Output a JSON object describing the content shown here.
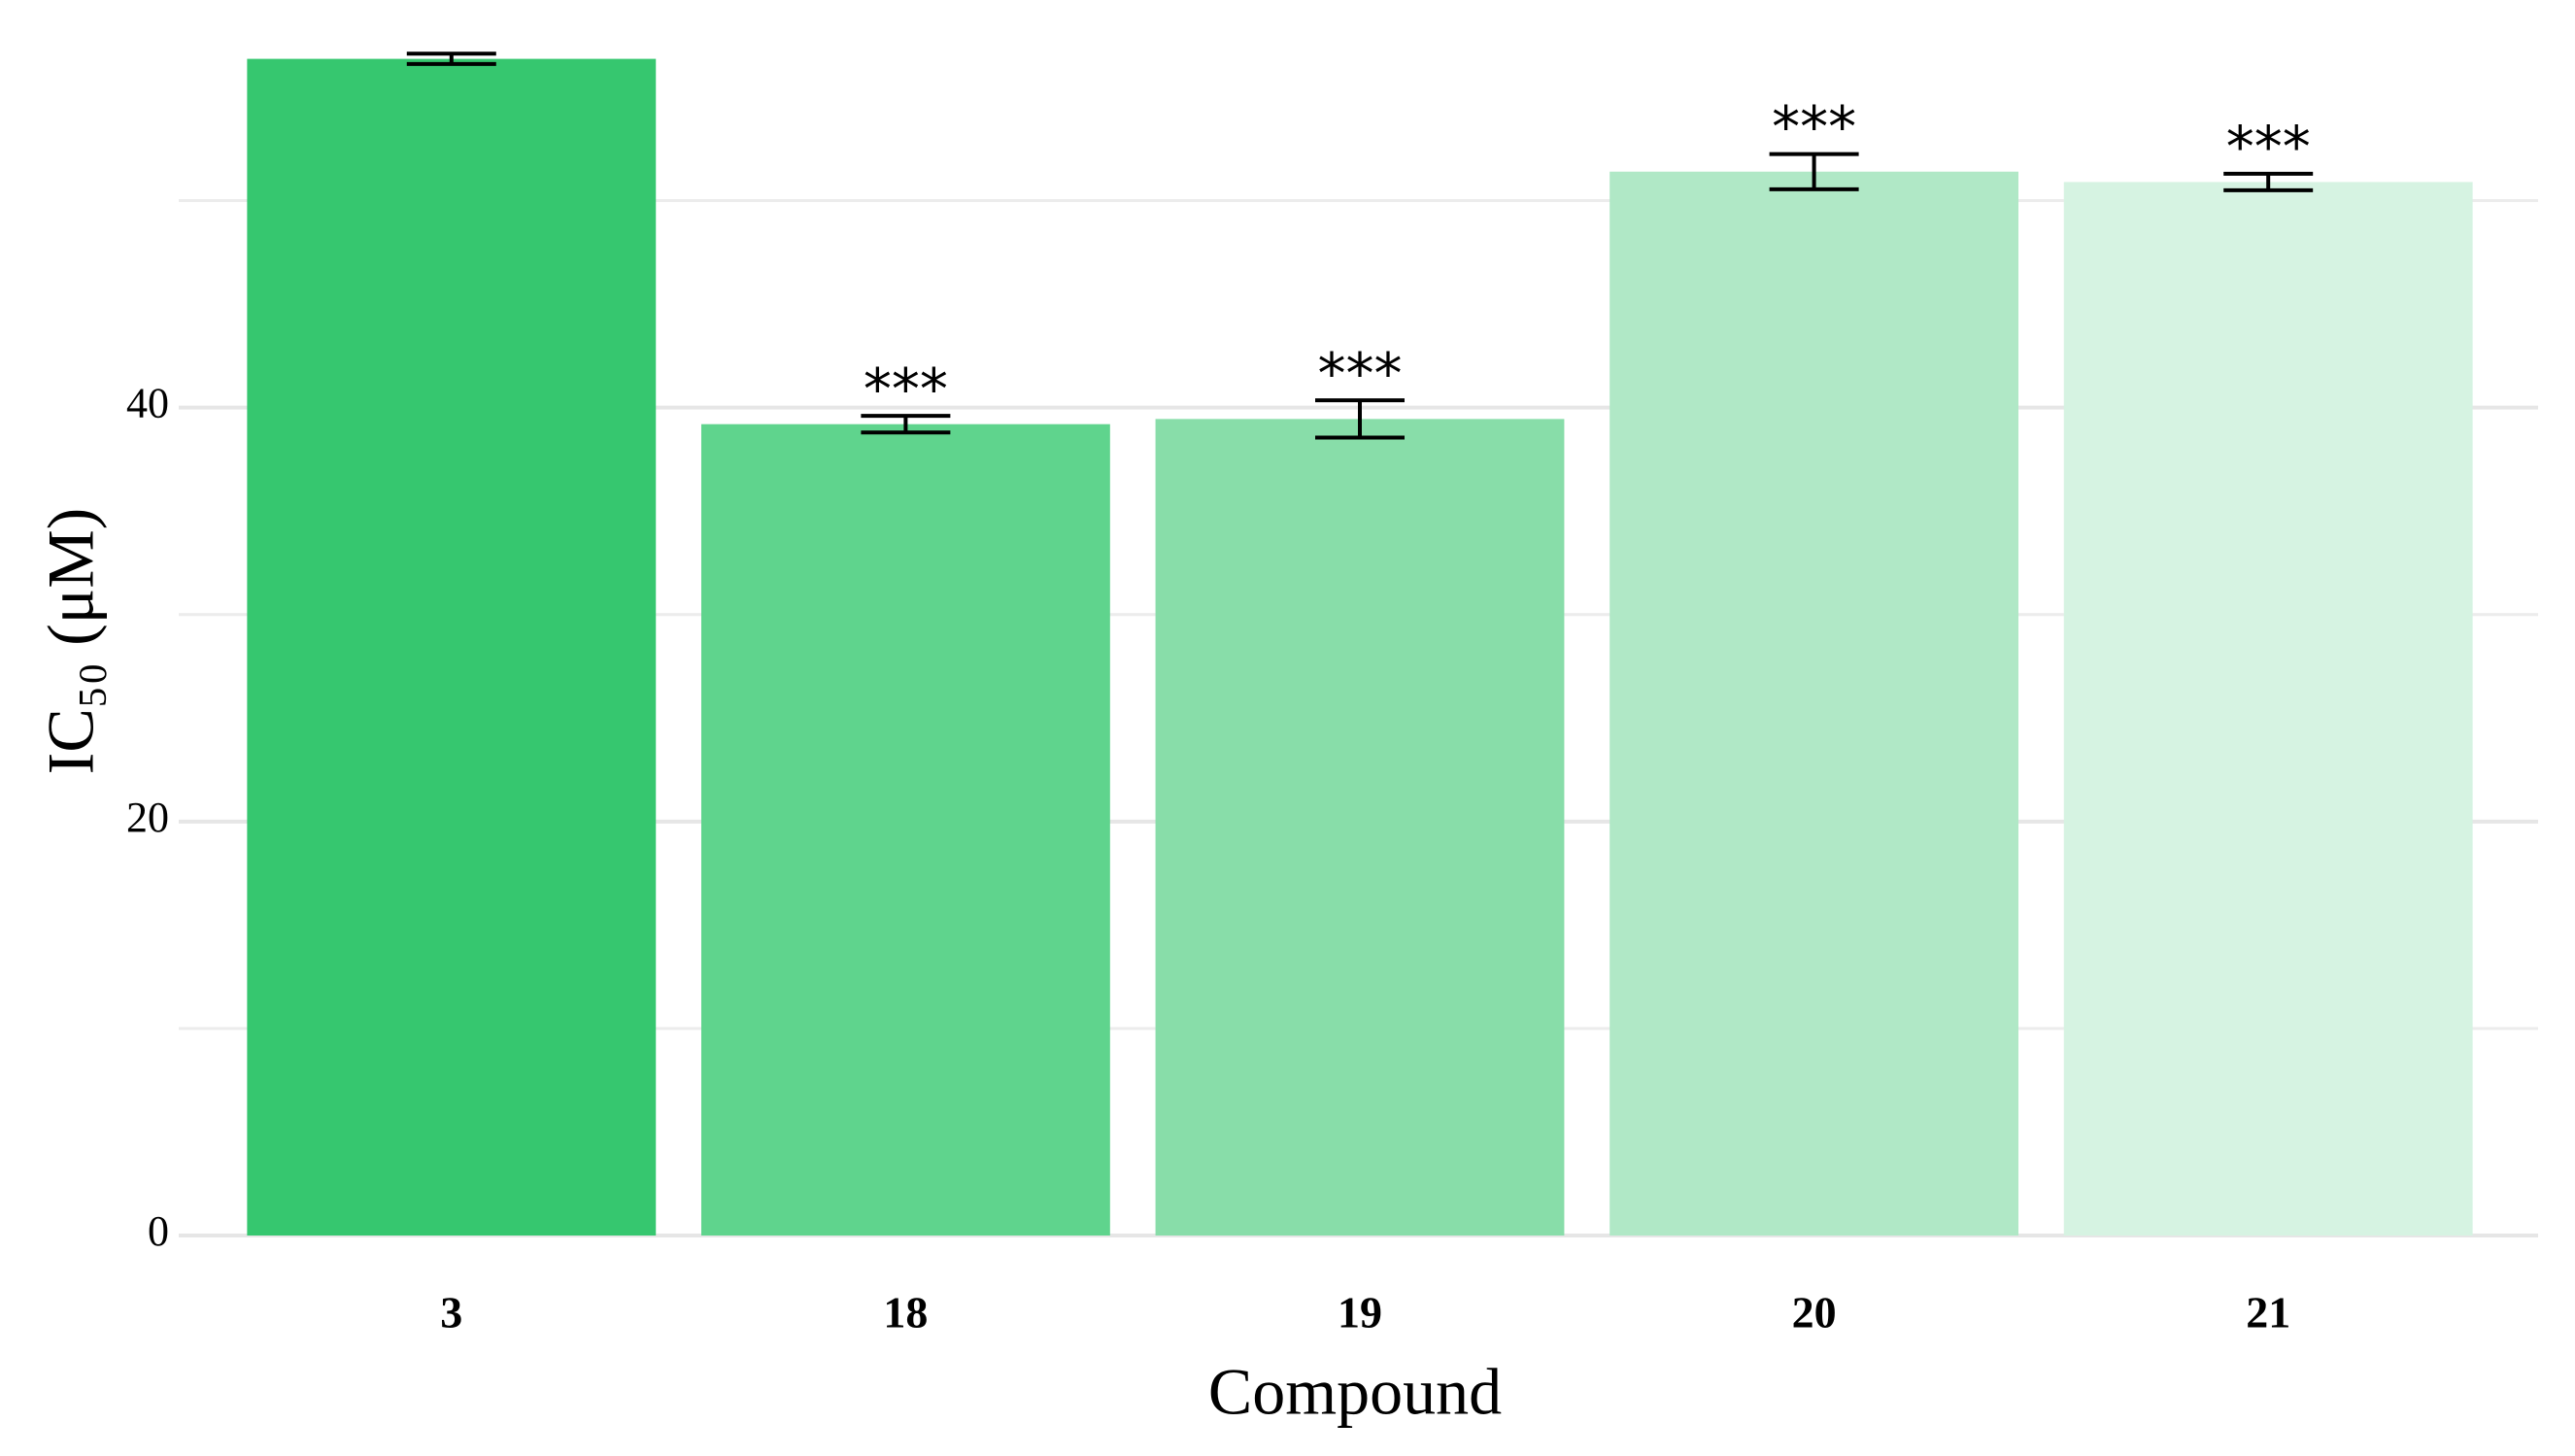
{
  "chart_data": {
    "type": "bar",
    "x_label": "Compound",
    "y_label": "IC₅₀ (μM)",
    "categories": [
      "3",
      "18",
      "19",
      "20",
      "21"
    ],
    "values": [
      56.85,
      39.2,
      39.45,
      51.4,
      50.9
    ],
    "errors": [
      0.25,
      0.4,
      0.9,
      0.85,
      0.4
    ],
    "annotations": [
      null,
      "***",
      "***",
      "***",
      "***"
    ],
    "colors": [
      "#36c76f",
      "#5fd48d",
      "#88dda9",
      "#b0e8c6",
      "#d6f3e2"
    ],
    "ylim": [
      0,
      57.3
    ],
    "yticks": [
      0,
      20,
      40
    ],
    "minor_yticks": [
      10,
      30,
      50
    ],
    "grid": true
  }
}
